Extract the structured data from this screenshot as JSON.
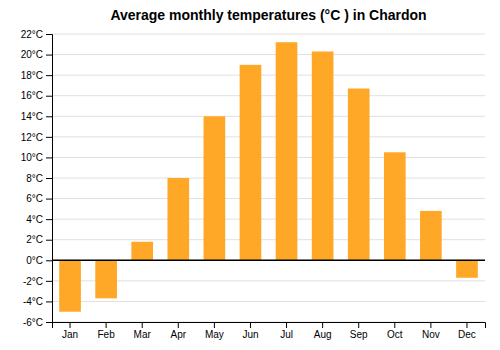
{
  "chart_data": {
    "type": "bar",
    "title": "Average monthly temperatures (°C ) in Chardon",
    "categories": [
      "Jan",
      "Feb",
      "Mar",
      "Apr",
      "May",
      "Jun",
      "Jul",
      "Aug",
      "Sep",
      "Oct",
      "Nov",
      "Dec"
    ],
    "values": [
      -5.0,
      -3.7,
      1.8,
      8.0,
      14.0,
      19.0,
      21.2,
      20.3,
      16.7,
      10.5,
      4.8,
      -1.7
    ],
    "color": "#FFA726",
    "ylim": [
      -6,
      22
    ],
    "yticks": [
      {
        "value": -6,
        "label": "-6°C"
      },
      {
        "value": -4,
        "label": "-4°C"
      },
      {
        "value": -2,
        "label": "-2°C"
      },
      {
        "value": 0,
        "label": "0°C"
      },
      {
        "value": 2,
        "label": "2°C"
      },
      {
        "value": 4,
        "label": "4°C"
      },
      {
        "value": 6,
        "label": "6°C"
      },
      {
        "value": 8,
        "label": "8°C"
      },
      {
        "value": 10,
        "label": "10°C"
      },
      {
        "value": 12,
        "label": "12°C"
      },
      {
        "value": 14,
        "label": "14°C"
      },
      {
        "value": 16,
        "label": "16°C"
      },
      {
        "value": 18,
        "label": "18°C"
      },
      {
        "value": 20,
        "label": "20°C"
      },
      {
        "value": 22,
        "label": "22°C"
      }
    ],
    "grid": true
  }
}
